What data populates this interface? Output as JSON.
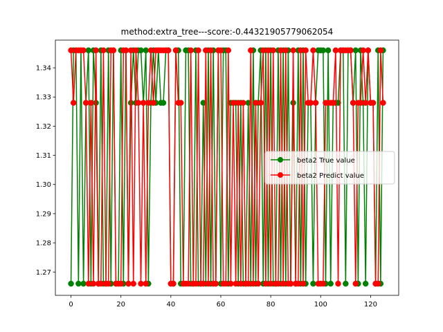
{
  "chart_data": {
    "type": "line",
    "title": "method:extra_tree---score:-0.44321905779062054",
    "xlabel": "",
    "ylabel": "",
    "xlim": [
      -6.25,
      131.25
    ],
    "ylim": [
      1.262,
      1.3495
    ],
    "xticks": [
      0,
      20,
      40,
      60,
      80,
      100,
      120
    ],
    "yticks": [
      1.27,
      1.28,
      1.29,
      1.3,
      1.31,
      1.32,
      1.33,
      1.34
    ],
    "ytick_labels": [
      "1.27",
      "1.28",
      "1.29",
      "1.30",
      "1.31",
      "1.32",
      "1.33",
      "1.34"
    ],
    "grid": false,
    "legend_position": "center-right",
    "series": [
      {
        "name": "beta2 True value",
        "color": "#008000",
        "x": [
          0,
          1,
          2,
          3,
          4,
          5,
          6,
          7,
          8,
          9,
          10,
          11,
          12,
          13,
          14,
          15,
          16,
          17,
          18,
          19,
          20,
          21,
          22,
          23,
          24,
          25,
          26,
          27,
          28,
          29,
          30,
          31,
          32,
          33,
          34,
          35,
          36,
          37,
          38,
          39,
          40,
          41,
          42,
          43,
          44,
          45,
          46,
          47,
          48,
          49,
          50,
          51,
          52,
          53,
          54,
          55,
          56,
          57,
          58,
          59,
          60,
          61,
          62,
          63,
          64,
          65,
          66,
          67,
          68,
          69,
          70,
          71,
          72,
          73,
          74,
          75,
          76,
          77,
          78,
          79,
          80,
          81,
          82,
          83,
          84,
          85,
          86,
          87,
          88,
          89,
          90,
          91,
          92,
          93,
          94,
          95,
          96,
          97,
          98,
          99,
          100,
          101,
          102,
          103,
          104,
          105,
          106,
          107,
          108,
          109,
          110,
          111,
          112,
          113,
          114,
          115,
          116,
          117,
          118,
          119,
          120,
          121,
          122,
          123,
          124,
          125
        ],
        "values": [
          1.266,
          1.346,
          1.346,
          1.266,
          1.346,
          1.266,
          1.328,
          1.346,
          1.266,
          1.346,
          1.328,
          1.266,
          1.346,
          1.266,
          1.266,
          1.346,
          1.266,
          1.346,
          1.266,
          1.266,
          1.346,
          1.266,
          1.346,
          1.266,
          1.328,
          1.346,
          1.328,
          1.346,
          1.346,
          1.328,
          1.346,
          1.266,
          1.328,
          1.346,
          1.328,
          1.346,
          1.328,
          1.328,
          1.346,
          1.346,
          1.266,
          1.266,
          1.346,
          1.346,
          1.266,
          1.266,
          1.346,
          1.346,
          1.266,
          1.266,
          1.346,
          1.266,
          1.266,
          1.328,
          1.266,
          1.346,
          1.266,
          1.346,
          1.266,
          1.346,
          1.266,
          1.346,
          1.346,
          1.266,
          1.328,
          1.328,
          1.328,
          1.266,
          1.328,
          1.266,
          1.266,
          1.328,
          1.266,
          1.346,
          1.266,
          1.328,
          1.346,
          1.266,
          1.346,
          1.266,
          1.346,
          1.266,
          1.266,
          1.346,
          1.266,
          1.346,
          1.266,
          1.346,
          1.266,
          1.328,
          1.266,
          1.346,
          1.266,
          1.346,
          1.266,
          1.328,
          1.328,
          1.266,
          1.328,
          1.346,
          1.346,
          1.346,
          1.266,
          1.346,
          1.266,
          1.328,
          1.328,
          1.328,
          1.346,
          1.346,
          1.266,
          1.346,
          1.346,
          1.328,
          1.346,
          1.266,
          1.346,
          1.328,
          1.266,
          1.346,
          1.328,
          1.328,
          1.266,
          1.346,
          1.266,
          1.346
        ],
        "marker": "circle"
      },
      {
        "name": "beta2 Predict value",
        "color": "#ff0000",
        "x": [
          0,
          1,
          2,
          3,
          4,
          5,
          6,
          7,
          8,
          9,
          10,
          11,
          12,
          13,
          14,
          15,
          16,
          17,
          18,
          19,
          20,
          21,
          22,
          23,
          24,
          25,
          26,
          27,
          28,
          29,
          30,
          31,
          32,
          33,
          34,
          35,
          36,
          37,
          38,
          39,
          40,
          41,
          42,
          43,
          44,
          45,
          46,
          47,
          48,
          49,
          50,
          51,
          52,
          53,
          54,
          55,
          56,
          57,
          58,
          59,
          60,
          61,
          62,
          63,
          64,
          65,
          66,
          67,
          68,
          69,
          70,
          71,
          72,
          73,
          74,
          75,
          76,
          77,
          78,
          79,
          80,
          81,
          82,
          83,
          84,
          85,
          86,
          87,
          88,
          89,
          90,
          91,
          92,
          93,
          94,
          95,
          96,
          97,
          98,
          99,
          100,
          101,
          102,
          103,
          104,
          105,
          106,
          107,
          108,
          109,
          110,
          111,
          112,
          113,
          114,
          115,
          116,
          117,
          118,
          119,
          120,
          121,
          122,
          123,
          124,
          125
        ],
        "values": [
          1.346,
          1.328,
          1.346,
          1.346,
          1.346,
          1.346,
          1.328,
          1.266,
          1.328,
          1.266,
          1.346,
          1.266,
          1.266,
          1.346,
          1.266,
          1.266,
          1.346,
          1.346,
          1.266,
          1.266,
          1.266,
          1.346,
          1.346,
          1.266,
          1.346,
          1.266,
          1.346,
          1.328,
          1.266,
          1.328,
          1.266,
          1.328,
          1.346,
          1.328,
          1.346,
          1.346,
          1.346,
          1.346,
          1.346,
          1.346,
          1.266,
          1.266,
          1.346,
          1.328,
          1.328,
          1.266,
          1.266,
          1.266,
          1.346,
          1.266,
          1.266,
          1.346,
          1.266,
          1.266,
          1.346,
          1.266,
          1.346,
          1.266,
          1.266,
          1.346,
          1.346,
          1.266,
          1.266,
          1.346,
          1.266,
          1.328,
          1.266,
          1.328,
          1.266,
          1.328,
          1.266,
          1.266,
          1.346,
          1.266,
          1.328,
          1.266,
          1.328,
          1.346,
          1.266,
          1.346,
          1.266,
          1.346,
          1.266,
          1.266,
          1.346,
          1.266,
          1.346,
          1.266,
          1.266,
          1.346,
          1.266,
          1.266,
          1.346,
          1.266,
          1.346,
          1.328,
          1.328,
          1.346,
          1.328,
          1.266,
          1.266,
          1.266,
          1.328,
          1.328,
          1.328,
          1.328,
          1.346,
          1.266,
          1.346,
          1.346,
          1.346,
          1.346,
          1.346,
          1.328,
          1.266,
          1.328,
          1.328,
          1.346,
          1.328,
          1.346,
          1.328,
          1.328,
          1.266,
          1.266,
          1.346,
          1.328
        ],
        "marker": "circle"
      }
    ]
  }
}
